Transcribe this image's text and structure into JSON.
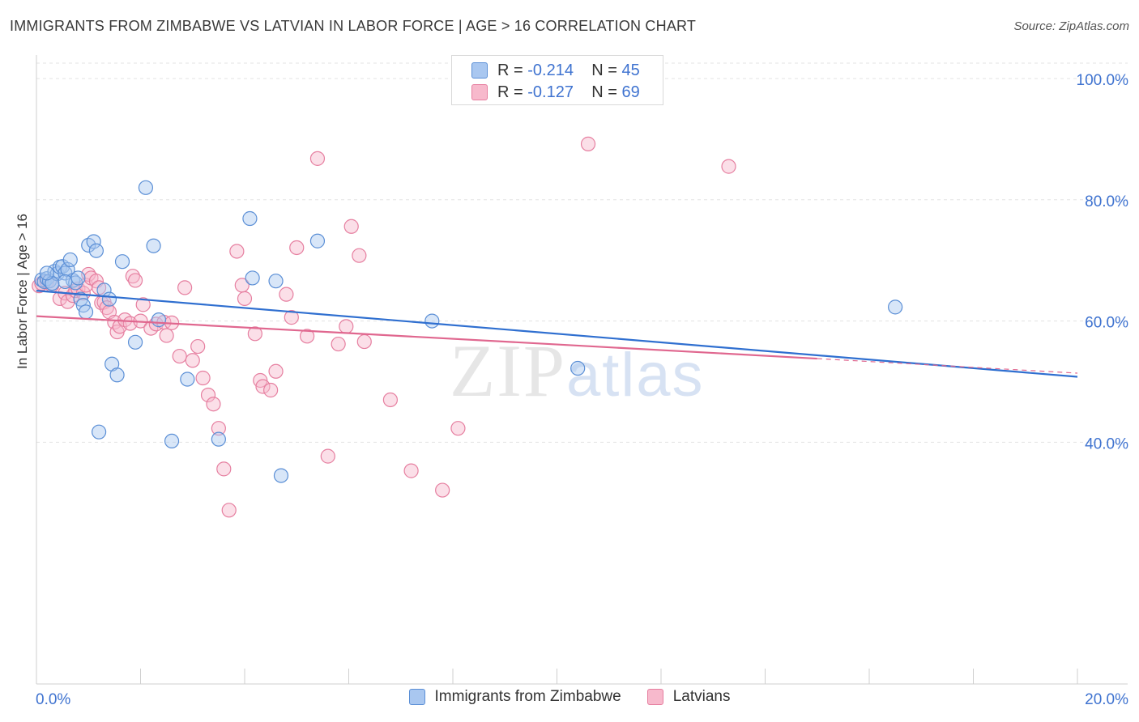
{
  "title": "IMMIGRANTS FROM ZIMBABWE VS LATVIAN IN LABOR FORCE | AGE > 16 CORRELATION CHART",
  "source": "Source: ZipAtlas.com",
  "watermark": {
    "zip": "ZIP",
    "atlas": "atlas"
  },
  "legend_top": [
    {
      "r_label": "R =",
      "r_value": "-0.214",
      "n_label": "N =",
      "n_value": "45"
    },
    {
      "r_label": "R =",
      "r_value": "-0.127",
      "n_label": "N =",
      "n_value": "69"
    }
  ],
  "legend_bottom": [
    "Immigrants from Zimbabwe",
    "Latvians"
  ],
  "colors": {
    "blue_fill": "#a9c7f0",
    "blue_stroke": "#5b8fd6",
    "blue_line": "#2f6fd0",
    "pink_fill": "#f7b9cc",
    "pink_stroke": "#e67fa0",
    "pink_line": "#e0678f",
    "axis_label": "#3f73d0"
  },
  "chart_data": {
    "type": "scatter",
    "title": "IMMIGRANTS FROM ZIMBABWE VS LATVIAN IN LABOR FORCE | AGE > 16 CORRELATION CHART",
    "xlabel": "",
    "ylabel": "In Labor Force | Age > 16",
    "xlim": [
      0,
      20
    ],
    "ylim": [
      20,
      102
    ],
    "x_tick_labels": [
      "0.0%",
      "20.0%"
    ],
    "y_ticks": [
      40,
      60,
      80,
      100
    ],
    "y_tick_labels": [
      "40.0%",
      "60.0%",
      "80.0%",
      "100.0%"
    ],
    "grid": true,
    "legend_position": "top-center",
    "series": [
      {
        "name": "Immigrants from Zimbabwe",
        "color": "#a9c7f0",
        "r": -0.214,
        "n": 45,
        "trend": {
          "x": [
            0,
            20
          ],
          "y": [
            65.0,
            50.8
          ]
        },
        "points": [
          [
            0.1,
            66.8
          ],
          [
            0.15,
            66.5
          ],
          [
            0.2,
            67.0
          ],
          [
            0.25,
            66.6
          ],
          [
            0.3,
            66.2
          ],
          [
            0.35,
            68.2
          ],
          [
            0.4,
            67.8
          ],
          [
            0.45,
            68.9
          ],
          [
            0.5,
            69.0
          ],
          [
            0.55,
            67.9
          ],
          [
            0.6,
            68.5
          ],
          [
            0.7,
            66.7
          ],
          [
            0.75,
            66.3
          ],
          [
            0.8,
            67.1
          ],
          [
            0.85,
            63.6
          ],
          [
            0.9,
            62.6
          ],
          [
            0.95,
            61.5
          ],
          [
            1.0,
            72.5
          ],
          [
            1.1,
            73.1
          ],
          [
            1.15,
            71.6
          ],
          [
            1.3,
            65.1
          ],
          [
            1.4,
            63.6
          ],
          [
            1.45,
            52.9
          ],
          [
            1.55,
            51.1
          ],
          [
            1.65,
            69.8
          ],
          [
            1.9,
            56.5
          ],
          [
            2.1,
            82.0
          ],
          [
            2.25,
            72.4
          ],
          [
            2.35,
            60.2
          ],
          [
            2.6,
            40.2
          ],
          [
            2.9,
            50.4
          ],
          [
            3.5,
            40.5
          ],
          [
            4.1,
            76.9
          ],
          [
            4.15,
            67.1
          ],
          [
            4.6,
            66.6
          ],
          [
            4.7,
            34.5
          ],
          [
            5.4,
            73.2
          ],
          [
            7.6,
            60.0
          ],
          [
            10.4,
            52.2
          ],
          [
            16.5,
            62.3
          ],
          [
            0.3,
            66.2
          ],
          [
            0.55,
            66.5
          ],
          [
            1.2,
            41.7
          ],
          [
            0.2,
            67.9
          ],
          [
            0.65,
            70.1
          ]
        ]
      },
      {
        "name": "Latvians",
        "color": "#f7b9cc",
        "r": -0.127,
        "n": 69,
        "trend": {
          "x": [
            0,
            15
          ],
          "y": [
            60.8,
            53.8
          ]
        },
        "trend_dashed": {
          "x": [
            15,
            20
          ],
          "y": [
            53.8,
            51.4
          ]
        },
        "points": [
          [
            0.05,
            65.8
          ],
          [
            0.1,
            66.2
          ],
          [
            0.2,
            66.5
          ],
          [
            0.3,
            65.9
          ],
          [
            0.45,
            63.7
          ],
          [
            0.55,
            64.6
          ],
          [
            0.6,
            63.2
          ],
          [
            0.7,
            64.2
          ],
          [
            0.75,
            65.0
          ],
          [
            0.8,
            65.3
          ],
          [
            0.9,
            64.6
          ],
          [
            0.95,
            65.9
          ],
          [
            1.0,
            67.7
          ],
          [
            1.05,
            67.1
          ],
          [
            1.15,
            66.6
          ],
          [
            1.2,
            65.5
          ],
          [
            1.25,
            63.0
          ],
          [
            1.3,
            63.1
          ],
          [
            1.35,
            62.2
          ],
          [
            1.4,
            61.5
          ],
          [
            1.5,
            59.8
          ],
          [
            1.55,
            58.2
          ],
          [
            1.6,
            59.1
          ],
          [
            1.7,
            60.2
          ],
          [
            1.8,
            59.6
          ],
          [
            1.85,
            67.4
          ],
          [
            1.9,
            66.7
          ],
          [
            2.0,
            60.0
          ],
          [
            2.05,
            62.7
          ],
          [
            2.2,
            58.8
          ],
          [
            2.3,
            59.5
          ],
          [
            2.45,
            59.8
          ],
          [
            2.5,
            57.6
          ],
          [
            2.6,
            59.7
          ],
          [
            2.75,
            54.2
          ],
          [
            2.85,
            65.5
          ],
          [
            3.0,
            53.5
          ],
          [
            3.1,
            55.8
          ],
          [
            3.2,
            50.6
          ],
          [
            3.3,
            47.8
          ],
          [
            3.4,
            46.3
          ],
          [
            3.5,
            42.3
          ],
          [
            3.6,
            35.6
          ],
          [
            3.7,
            28.8
          ],
          [
            3.85,
            71.5
          ],
          [
            3.95,
            65.9
          ],
          [
            4.0,
            63.7
          ],
          [
            4.2,
            57.9
          ],
          [
            4.3,
            50.2
          ],
          [
            4.35,
            49.2
          ],
          [
            4.5,
            48.6
          ],
          [
            4.6,
            51.7
          ],
          [
            4.8,
            64.4
          ],
          [
            4.9,
            60.6
          ],
          [
            5.0,
            72.1
          ],
          [
            5.2,
            57.5
          ],
          [
            5.4,
            86.8
          ],
          [
            5.6,
            37.7
          ],
          [
            5.8,
            56.2
          ],
          [
            5.95,
            59.1
          ],
          [
            6.05,
            75.6
          ],
          [
            6.2,
            70.8
          ],
          [
            6.3,
            56.6
          ],
          [
            6.8,
            47.0
          ],
          [
            7.2,
            35.3
          ],
          [
            7.8,
            32.1
          ],
          [
            8.1,
            42.3
          ],
          [
            10.6,
            89.2
          ],
          [
            13.3,
            85.5
          ]
        ]
      }
    ]
  }
}
